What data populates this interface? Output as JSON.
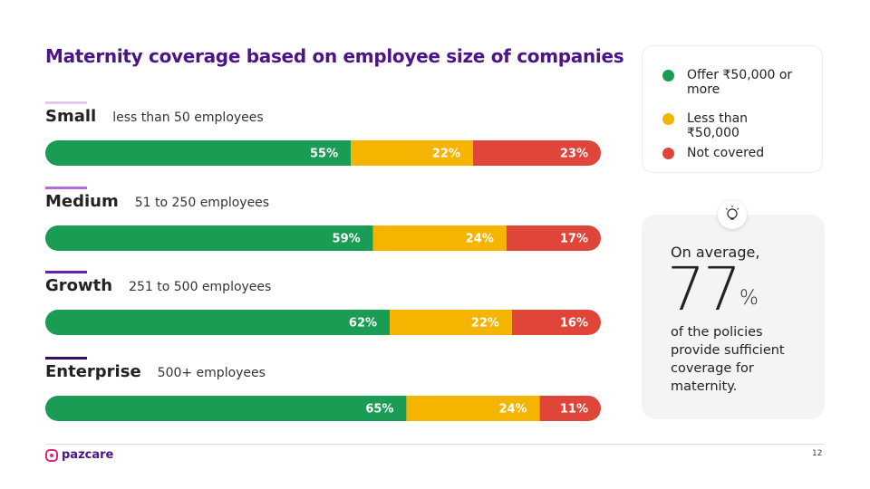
{
  "chart_data": {
    "type": "bar",
    "stacked": true,
    "orientation": "horizontal",
    "title": "Maternity coverage based on employee size of companies",
    "categories": [
      "Small",
      "Medium",
      "Growth",
      "Enterprise"
    ],
    "category_descriptions": [
      "less than 50 employees",
      "51 to 250 employees",
      "251 to 500 employees",
      "500+ employees"
    ],
    "xlim": [
      0,
      100
    ],
    "series": [
      {
        "name": "Offer ₹50,000 or more",
        "color": "#1a9c55",
        "values": [
          55,
          59,
          62,
          65
        ],
        "value_labels": [
          "55%",
          "59%",
          "62%",
          "65%"
        ]
      },
      {
        "name": "Less than ₹50,000",
        "color": "#f5b400",
        "values": [
          22,
          24,
          22,
          24
        ],
        "value_labels": [
          "22%",
          "24%",
          "22%",
          "24%"
        ]
      },
      {
        "name": "Not covered",
        "color": "#e0453a",
        "values": [
          23,
          17,
          16,
          11
        ],
        "value_labels": [
          "23%",
          "17%",
          "16%",
          "11%"
        ]
      }
    ]
  },
  "callout": {
    "intro": "On average,",
    "value": 77,
    "unit": "%",
    "text": "of the policies provide sufficient coverage for maternity."
  },
  "footer": {
    "brand": "pazcare",
    "page_number": 12
  }
}
